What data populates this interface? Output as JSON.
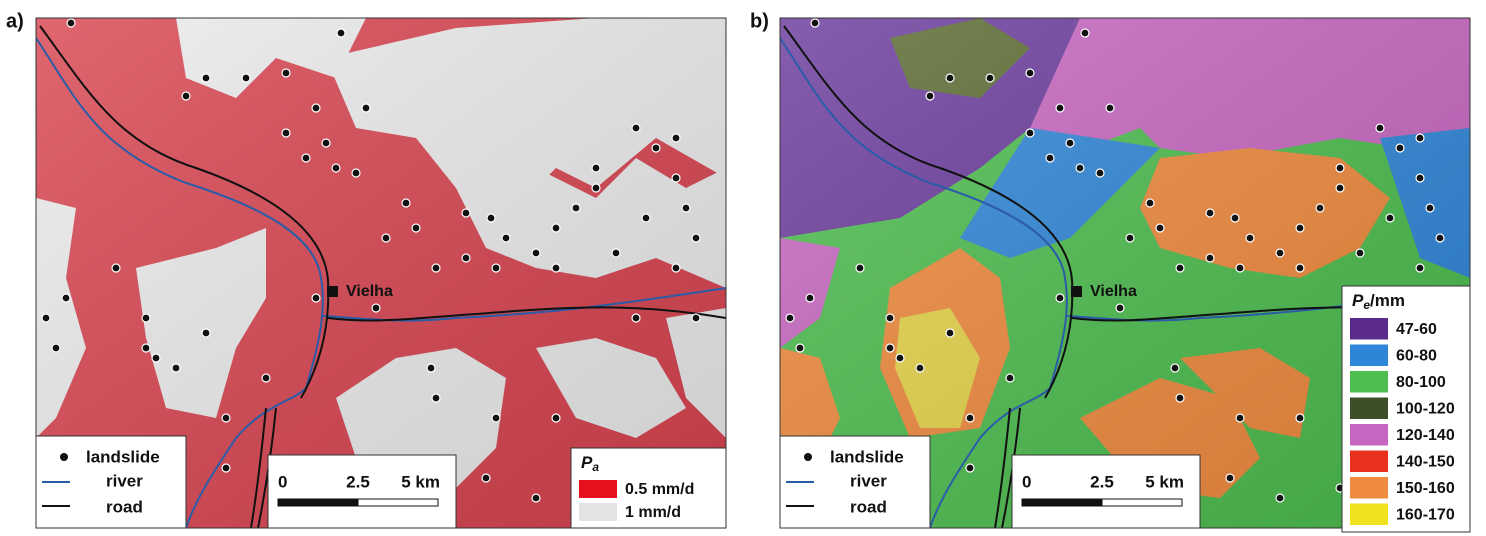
{
  "panels": [
    {
      "label": "a)",
      "town": "Vielha",
      "legend": {
        "landslide": "landslide",
        "river": "river",
        "road": "road"
      },
      "scale": [
        "0",
        "2.5",
        "5 km"
      ],
      "key": {
        "title_main": "P",
        "title_sub": "a",
        "classes": [
          {
            "label": "0.5 mm/d",
            "color": "#e8101e"
          },
          {
            "label": "1 mm/d",
            "color": "#e3e3e3"
          }
        ]
      }
    },
    {
      "label": "b)",
      "town": "Vielha",
      "legend": {
        "landslide": "landslide",
        "river": "river",
        "road": "road"
      },
      "scale": [
        "0",
        "2.5",
        "5 km"
      ],
      "key": {
        "title_main": "P",
        "title_sub": "e",
        "title_unit": "/mm",
        "classes": [
          {
            "label": "47-60",
            "color": "#5b2a8c"
          },
          {
            "label": "60-80",
            "color": "#2f86d8"
          },
          {
            "label": "80-100",
            "color": "#4cbd4e"
          },
          {
            "label": "100-120",
            "color": "#3d4f26"
          },
          {
            "label": "120-140",
            "color": "#c766c0"
          },
          {
            "label": "140-150",
            "color": "#e8321e"
          },
          {
            "label": "150-160",
            "color": "#f08a3e"
          },
          {
            "label": "160-170",
            "color": "#f0e21e"
          }
        ]
      }
    }
  ]
}
